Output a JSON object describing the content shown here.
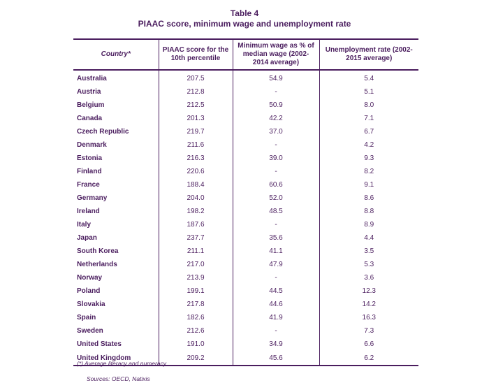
{
  "title": "Table 4",
  "subtitle": "PIAAC score, minimum wage and unemployment rate",
  "columns": [
    "Country*",
    "PIAAC score for the 10th percentile",
    "Minimum wage as % of median wage (2002-2014 average)",
    "Unemployment rate (2002-2015 average)"
  ],
  "rows": [
    [
      "Australia",
      "207.5",
      "54.9",
      "5.4"
    ],
    [
      "Austria",
      "212.8",
      "-",
      "5.1"
    ],
    [
      "Belgium",
      "212.5",
      "50.9",
      "8.0"
    ],
    [
      "Canada",
      "201.3",
      "42.2",
      "7.1"
    ],
    [
      "Czech Republic",
      "219.7",
      "37.0",
      "6.7"
    ],
    [
      "Denmark",
      "211.6",
      "-",
      "4.2"
    ],
    [
      "Estonia",
      "216.3",
      "39.0",
      "9.3"
    ],
    [
      "Finland",
      "220.6",
      "-",
      "8.2"
    ],
    [
      "France",
      "188.4",
      "60.6",
      "9.1"
    ],
    [
      "Germany",
      "204.0",
      "52.0",
      "8.6"
    ],
    [
      "Ireland",
      "198.2",
      "48.5",
      "8.8"
    ],
    [
      "Italy",
      "187.6",
      "-",
      "8.9"
    ],
    [
      "Japan",
      "237.7",
      "35.6",
      "4.4"
    ],
    [
      "South Korea",
      "211.1",
      "41.1",
      "3.5"
    ],
    [
      "Netherlands",
      "217.0",
      "47.9",
      "5.3"
    ],
    [
      "Norway",
      "213.9",
      "-",
      "3.6"
    ],
    [
      "Poland",
      "199.1",
      "44.5",
      "12.3"
    ],
    [
      "Slovakia",
      "217.8",
      "44.6",
      "14.2"
    ],
    [
      "Spain",
      "182.6",
      "41.9",
      "16.3"
    ],
    [
      "Sweden",
      "212.6",
      "-",
      "7.3"
    ],
    [
      "United States",
      "191.0",
      "34.9",
      "6.6"
    ],
    [
      "United Kingdom",
      "209.2",
      "45.6",
      "6.2"
    ]
  ],
  "footnote": "(*) Average literacy and numeracy",
  "source": "Sources: OECD, Natixis",
  "colors": {
    "text": "#4a1d5e",
    "rule": "#4a1d5e"
  }
}
